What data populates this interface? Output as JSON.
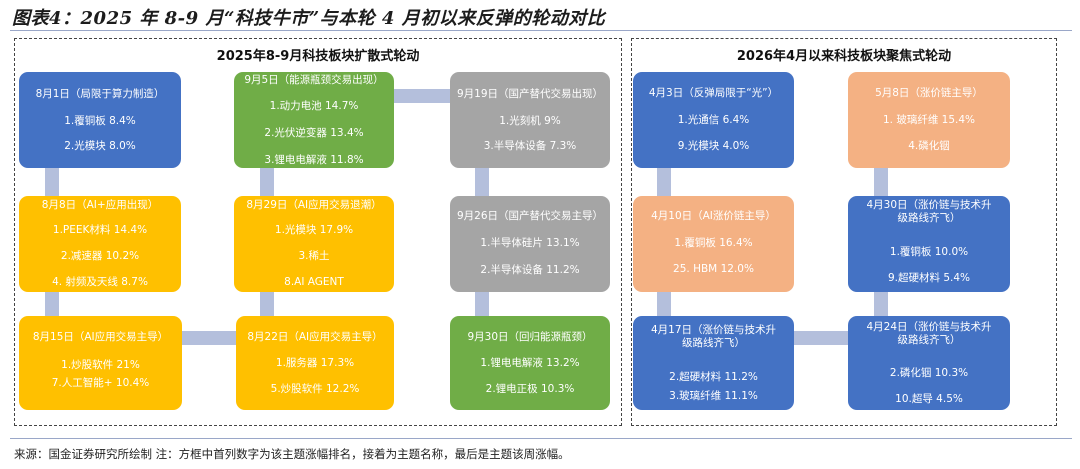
{
  "figure_title": "图表4：2025 年 8-9 月“科技牛市”与本轮 4 月初以来反弹的轮动对比",
  "source_note": "来源：国金证券研究所绘制  注：方框中首列数字为该主题涨幅排名，接着为主题名称，最后是主题该周涨幅。",
  "left_panel": {
    "title": "2025年8-9月科技板块扩散式轮动",
    "nodes": [
      {
        "head": "8月1日（局限于算力制造）",
        "items": [
          "1.覆铜板 8.4%",
          "2.光模块 8.0%"
        ]
      },
      {
        "head": "9月5日（能源瓶颈交易出现）",
        "items": [
          "1.动力电池 14.7%",
          "2.光伏逆变器 13.4%",
          "3.锂电电解液 11.8%"
        ]
      },
      {
        "head": "9月19日（国产替代交易出现）",
        "items": [
          "1.光刻机 9%",
          "3.半导体设备 7.3%"
        ]
      },
      {
        "head": "8月8日（AI+应用出现）",
        "items": [
          "1.PEEK材料 14.4%",
          "2.减速器 10.2%",
          "4. 射频及天线 8.7%"
        ]
      },
      {
        "head": "8月29日（AI应用交易退潮）",
        "items": [
          "1.光模块 17.9%",
          "3.稀土",
          "8.AI AGENT"
        ]
      },
      {
        "head": "9月26日（国产替代交易主导）",
        "items": [
          "1.半导体硅片 13.1%",
          "2.半导体设备 11.2%"
        ]
      },
      {
        "head": "8月15日（AI应用交易主导）",
        "items": [
          "1.炒股软件 21%",
          "7.人工智能+ 10.4%"
        ]
      },
      {
        "head": "8月22日（AI应用交易主导）",
        "items": [
          "1.服务器 17.3%",
          "5.炒股软件 12.2%"
        ]
      },
      {
        "head": "9月30日（回归能源瓶颈）",
        "items": [
          "1.锂电电解液 13.2%",
          "2.锂电正极 10.3%"
        ]
      }
    ]
  },
  "right_panel": {
    "title": "2026年4月以来科技板块聚焦式轮动",
    "nodes": [
      {
        "head": "4月3日（反弹局限于“光”）",
        "items": [
          "1.光通信 6.4%",
          "9.光模块 4.0%"
        ]
      },
      {
        "head": "5月8日（涨价链主导）",
        "items": [
          "1. 玻璃纤维 15.4%",
          "4.磷化铟"
        ]
      },
      {
        "head": "4月10日（AI涨价链主导）",
        "items": [
          "1.覆铜板 16.4%",
          "25. HBM 12.0%"
        ]
      },
      {
        "head": "4月30日（涨价链与技术升级路线齐飞）",
        "items": [
          "1.覆铜板 10.0%",
          "9.超硬材料 5.4%"
        ]
      },
      {
        "head": "4月17日（涨价链与技术升级路线齐飞）",
        "items": [
          "2.超硬材料 11.2%",
          "3.玻璃纤维 11.1%"
        ]
      },
      {
        "head": "4月24日（涨价链与技术升级路线齐飞）",
        "items": [
          "2.磷化铟 10.3%",
          "10.超导 4.5%"
        ]
      }
    ]
  },
  "colors": {
    "blue": "#4472c4",
    "yellow": "#ffc000",
    "green": "#70ad47",
    "gray": "#a5a5a5",
    "salmon": "#f4b183",
    "connector": "#b4bfdc"
  }
}
